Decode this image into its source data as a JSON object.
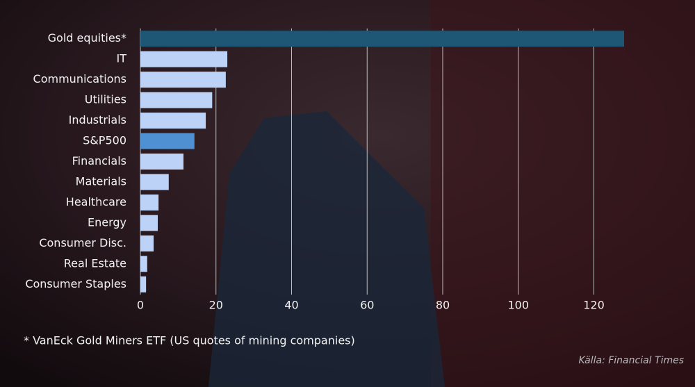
{
  "chart_data": {
    "type": "hbar",
    "categories": [
      "Gold equities*",
      "IT",
      "Communications",
      "Utilities",
      "Industrials",
      "S&P500",
      "Financials",
      "Materials",
      "Healthcare",
      "Energy",
      "Consumer Disc.",
      "Real Estate",
      "Consumer Staples"
    ],
    "values": [
      128,
      23,
      22.6,
      19,
      17.3,
      14.3,
      11.4,
      7.5,
      4.8,
      4.6,
      3.5,
      1.8,
      1.5
    ],
    "colors": [
      "#1d5775",
      "#bcd2f7",
      "#bcd2f7",
      "#bcd2f7",
      "#bcd2f7",
      "#4f90d2",
      "#bcd2f7",
      "#bcd2f7",
      "#bcd2f7",
      "#bcd2f7",
      "#bcd2f7",
      "#bcd2f7",
      "#bcd2f7"
    ],
    "xlim": [
      0,
      128
    ],
    "xticks": [
      0,
      20,
      40,
      60,
      80,
      100,
      120
    ],
    "grid": true,
    "footnote": "* VanEck Gold Miners ETF (US quotes of mining companies)",
    "source": "Källa: Financial Times"
  }
}
